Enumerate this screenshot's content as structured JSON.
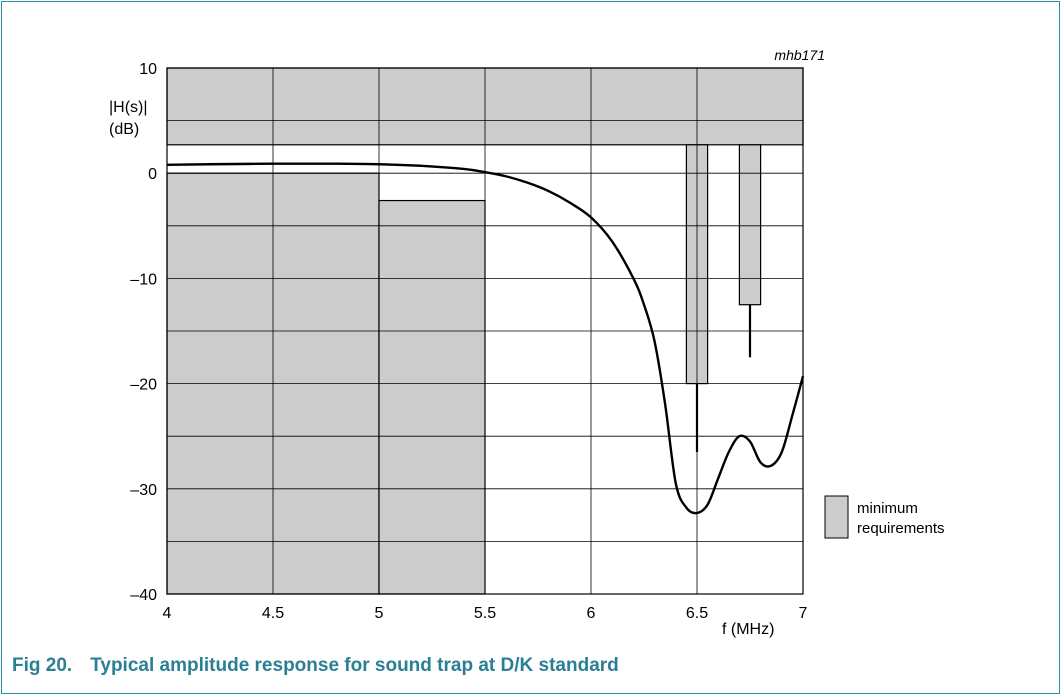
{
  "figure": {
    "number": "Fig 20.",
    "title": "Typical amplitude response for sound trap at D/K standard",
    "code": "mhb171"
  },
  "chart_data": {
    "type": "line",
    "ylabel_line1": "|H(s)|",
    "ylabel_line2": "(dB)",
    "xlabel": "f (MHz)",
    "xlim": [
      4,
      7
    ],
    "ylim": [
      -40,
      10
    ],
    "x_ticks": [
      4,
      4.5,
      5,
      5.5,
      6,
      6.5,
      7
    ],
    "x_tick_labels": [
      "4",
      "4.5",
      "5",
      "5.5",
      "6",
      "6.5",
      "7"
    ],
    "y_ticks": [
      10,
      0,
      -10,
      -20,
      -30,
      -40
    ],
    "y_tick_labels": [
      "10",
      "0",
      "–10",
      "–20",
      "–30",
      "–40"
    ],
    "grid": true,
    "grid_x_step": 0.5,
    "grid_y_step": 5,
    "legend": {
      "label_line1": "minimum",
      "label_line2": "requirements",
      "position": "right",
      "color": "#cccccc"
    },
    "masks": [
      {
        "x0": 4.0,
        "x1": 7.0,
        "y0": 2.7,
        "y1": 10.0
      },
      {
        "x0": 4.0,
        "x1": 5.0,
        "y0": -40.0,
        "y1": 0.0
      },
      {
        "x0": 5.0,
        "x1": 5.5,
        "y0": -40.0,
        "y1": -2.6
      },
      {
        "x0": 6.45,
        "x1": 6.55,
        "y0": -20.0,
        "y1": 2.7
      },
      {
        "x0": 6.7,
        "x1": 6.8,
        "y0": -12.5,
        "y1": 2.7
      }
    ],
    "spikes": [
      {
        "x": 6.5,
        "y0": -20.0,
        "y1": -26.5
      },
      {
        "x": 6.75,
        "y0": -12.5,
        "y1": -17.5
      }
    ],
    "series": [
      {
        "color": "#000000",
        "x": [
          4.0,
          4.2,
          4.5,
          4.8,
          5.0,
          5.2,
          5.4,
          5.5,
          5.6,
          5.7,
          5.8,
          5.9,
          6.0,
          6.1,
          6.2,
          6.25,
          6.3,
          6.35,
          6.4,
          6.45,
          6.5,
          6.55,
          6.6,
          6.65,
          6.7,
          6.75,
          6.8,
          6.85,
          6.9,
          6.95,
          7.0
        ],
        "y": [
          0.8,
          0.85,
          0.9,
          0.9,
          0.85,
          0.7,
          0.4,
          0.1,
          -0.3,
          -0.9,
          -1.7,
          -2.8,
          -4.2,
          -6.5,
          -10.0,
          -12.5,
          -16.0,
          -22.0,
          -29.5,
          -31.8,
          -32.3,
          -31.5,
          -29.0,
          -26.5,
          -25.0,
          -25.5,
          -27.5,
          -27.8,
          -26.5,
          -23.0,
          -19.3
        ]
      }
    ]
  }
}
